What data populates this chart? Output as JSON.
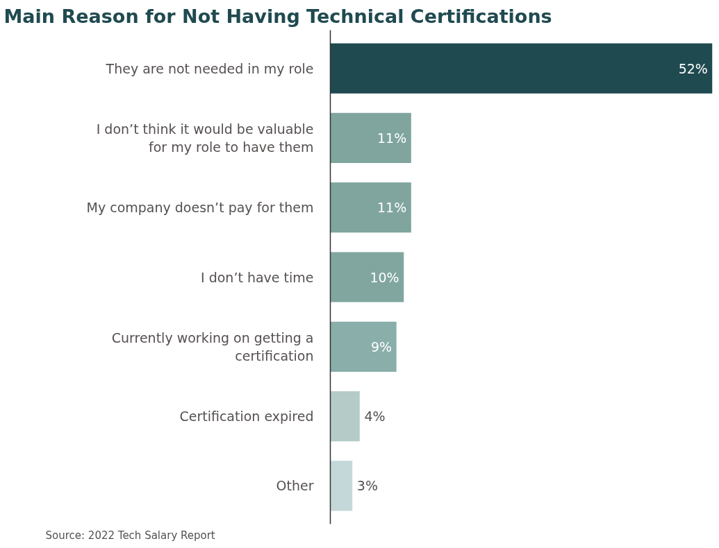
{
  "chart_data": {
    "type": "bar",
    "orientation": "horizontal",
    "title": "Main Reason for Not Having Technical Certifications",
    "categories": [
      "They are not needed in my role",
      "I don’t think it would be valuable for my role to have them",
      "My company doesn’t pay for them",
      "I don’t have time",
      "Currently working on getting a certification",
      "Certification expired",
      "Other"
    ],
    "values": [
      52,
      11,
      11,
      10,
      9,
      4,
      3
    ],
    "colors": [
      "#1f4a50",
      "#7fa59e",
      "#7fa59e",
      "#80a69f",
      "#8aaea9",
      "#b5cbc8",
      "#c4d8d9"
    ],
    "value_labels": [
      "52%",
      "11%",
      "11%",
      "10%",
      "9%",
      "4%",
      "3%"
    ],
    "xlim": [
      0,
      52
    ],
    "tick_labels": "y",
    "grid": false,
    "annotations": [
      "Source: 2022 Tech Salary Report"
    ]
  }
}
